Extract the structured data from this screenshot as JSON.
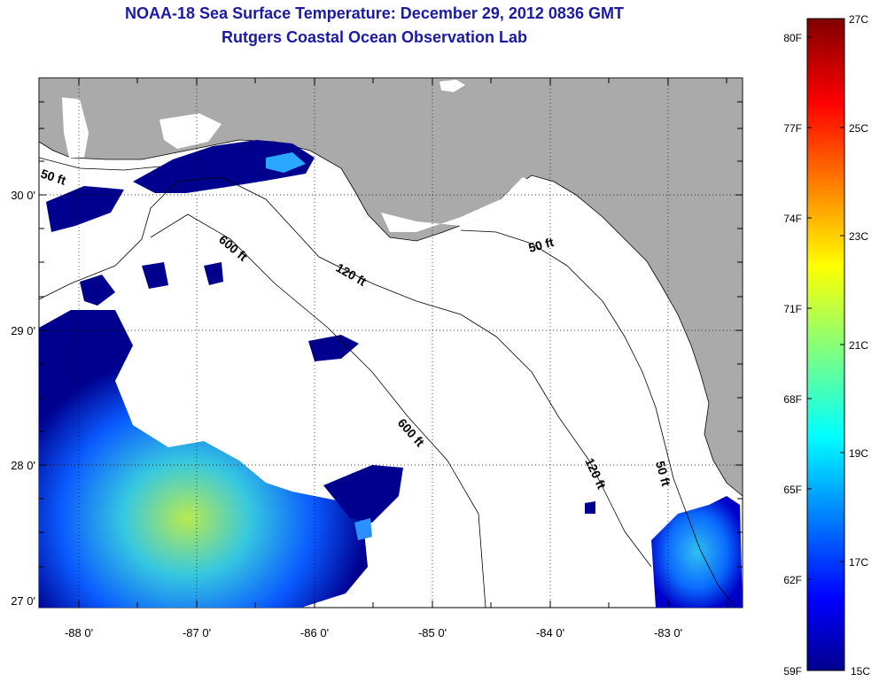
{
  "header": {
    "title_line1": "NOAA-18 Sea Surface Temperature:  December 29, 2012 0836 GMT",
    "title_line2": "Rutgers Coastal Ocean Observation Lab"
  },
  "map": {
    "lat_labels": [
      "30 0'",
      "29 0'",
      "28 0'",
      "27 0'"
    ],
    "lon_labels": [
      "-88 0'",
      "-87 0'",
      "-86 0'",
      "-85 0'",
      "-84 0'",
      "-83 0'"
    ],
    "contour_labels": {
      "c50_west": "50 ft",
      "c50_east": "50 ft",
      "c50_south": "50 ft",
      "c120_north": "120 ft",
      "c120_south": "120 ft",
      "c600_north": "600 ft",
      "c600_south": "600 ft"
    },
    "colors": {
      "land": "#aaaaaa",
      "water_cloud": "#ffffff",
      "cold": "#00008f"
    }
  },
  "colorbar": {
    "fahrenheit_labels": [
      "80F",
      "77F",
      "74F",
      "71F",
      "68F",
      "65F",
      "62F",
      "59F"
    ],
    "celsius_labels": [
      "27C",
      "25C",
      "23C",
      "21C",
      "19C",
      "17C",
      "15C"
    ],
    "colormap": "jet",
    "range_c": [
      15,
      27
    ],
    "range_f": [
      59,
      80.6
    ]
  }
}
